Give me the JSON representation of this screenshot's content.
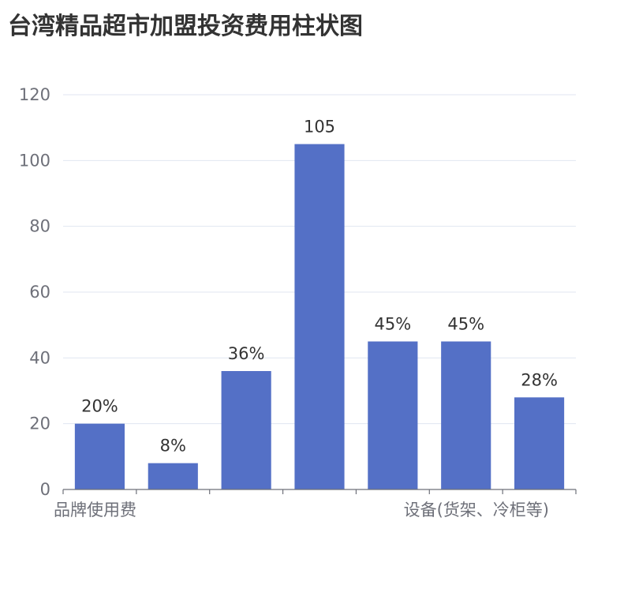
{
  "chart_data": {
    "type": "bar",
    "title": "台湾精品超市加盟投资费用柱状图",
    "categories": [
      "品牌使用费",
      "",
      "",
      "",
      "",
      "",
      "设备(货架、冷柜等)"
    ],
    "values": [
      20,
      8,
      36,
      105,
      45,
      45,
      28
    ],
    "data_labels": [
      "20%",
      "8%",
      "36%",
      "105",
      "45%",
      "45%",
      "28%"
    ],
    "yticks": [
      "0",
      "20",
      "40",
      "60",
      "80",
      "100",
      "120"
    ],
    "ylim": [
      0,
      120
    ],
    "grid": true,
    "bar_color": "#5470c6"
  }
}
